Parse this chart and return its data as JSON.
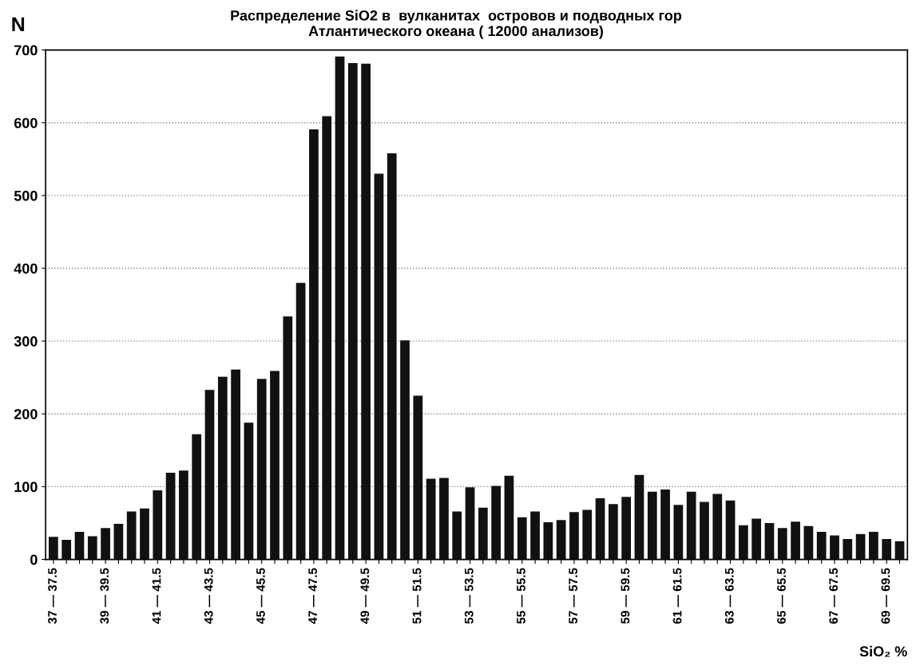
{
  "chart_data": {
    "type": "bar",
    "title": "Распределение SiO2 в  вулканитах  островов и подводных гор\nАтлантического океана ( 12000 анализов)",
    "xlabel": "SiO₂ %",
    "ylabel": "N",
    "categories": [
      "37 — 37.5",
      null,
      null,
      null,
      "39 — 39.5",
      null,
      null,
      null,
      "41 — 41.5",
      null,
      null,
      null,
      "43 — 43.5",
      null,
      null,
      null,
      "45 — 45.5",
      null,
      null,
      null,
      "47 — 47.5",
      null,
      null,
      null,
      "49 — 49.5",
      null,
      null,
      null,
      "51 — 51.5",
      null,
      null,
      null,
      "53 — 53.5",
      null,
      null,
      null,
      "55 — 55.5",
      null,
      null,
      null,
      "57 — 57.5",
      null,
      null,
      null,
      "59 — 59.5",
      null,
      null,
      null,
      "61 — 61.5",
      null,
      null,
      null,
      "63 — 63.5",
      null,
      null,
      null,
      "65 — 65.5",
      null,
      null,
      null,
      "67 — 67.5",
      null,
      null,
      null,
      "69 — 69.5",
      null
    ],
    "values": [
      31,
      27,
      38,
      32,
      43,
      49,
      66,
      70,
      95,
      119,
      122,
      172,
      233,
      251,
      261,
      188,
      248,
      259,
      334,
      380,
      591,
      609,
      691,
      682,
      681,
      530,
      558,
      301,
      225,
      111,
      112,
      66,
      99,
      71,
      101,
      115,
      58,
      66,
      51,
      54,
      65,
      68,
      84,
      76,
      86,
      116,
      93,
      96,
      75,
      93,
      79,
      90,
      81,
      47,
      56,
      50,
      43,
      52,
      46,
      38,
      33,
      28,
      35,
      38,
      28,
      25
    ],
    "color": "#111111",
    "ylim": [
      0,
      700
    ],
    "yticks": [
      0,
      100,
      200,
      300,
      400,
      500,
      600,
      700
    ],
    "grid": "y",
    "legend": false
  }
}
